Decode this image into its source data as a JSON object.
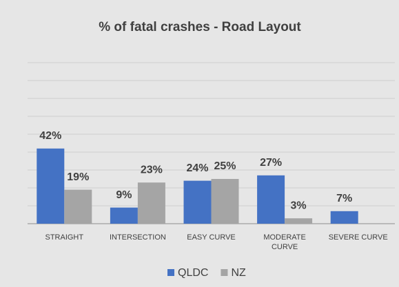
{
  "chart_data": {
    "type": "bar",
    "title": "% of fatal crashes - Road Layout",
    "categories": [
      "STRAIGHT",
      "INTERSECTION",
      "EASY CURVE",
      "MODERATE CURVE",
      "SEVERE CURVE"
    ],
    "series": [
      {
        "name": "QLDC",
        "color": "#4472c4",
        "values": [
          42,
          9,
          24,
          27,
          7
        ],
        "value_labels": [
          "42%",
          "9%",
          "24%",
          "27%",
          "7%"
        ]
      },
      {
        "name": "NZ",
        "color": "#a5a5a5",
        "values": [
          19,
          23,
          25,
          3,
          null
        ],
        "value_labels": [
          "19%",
          "23%",
          "25%",
          "3%",
          null
        ]
      }
    ],
    "ylim": [
      0,
      90
    ],
    "yticks": [
      0,
      10,
      20,
      30,
      40,
      50,
      60,
      70,
      80,
      90
    ],
    "grid": true,
    "legend": "bottom"
  }
}
